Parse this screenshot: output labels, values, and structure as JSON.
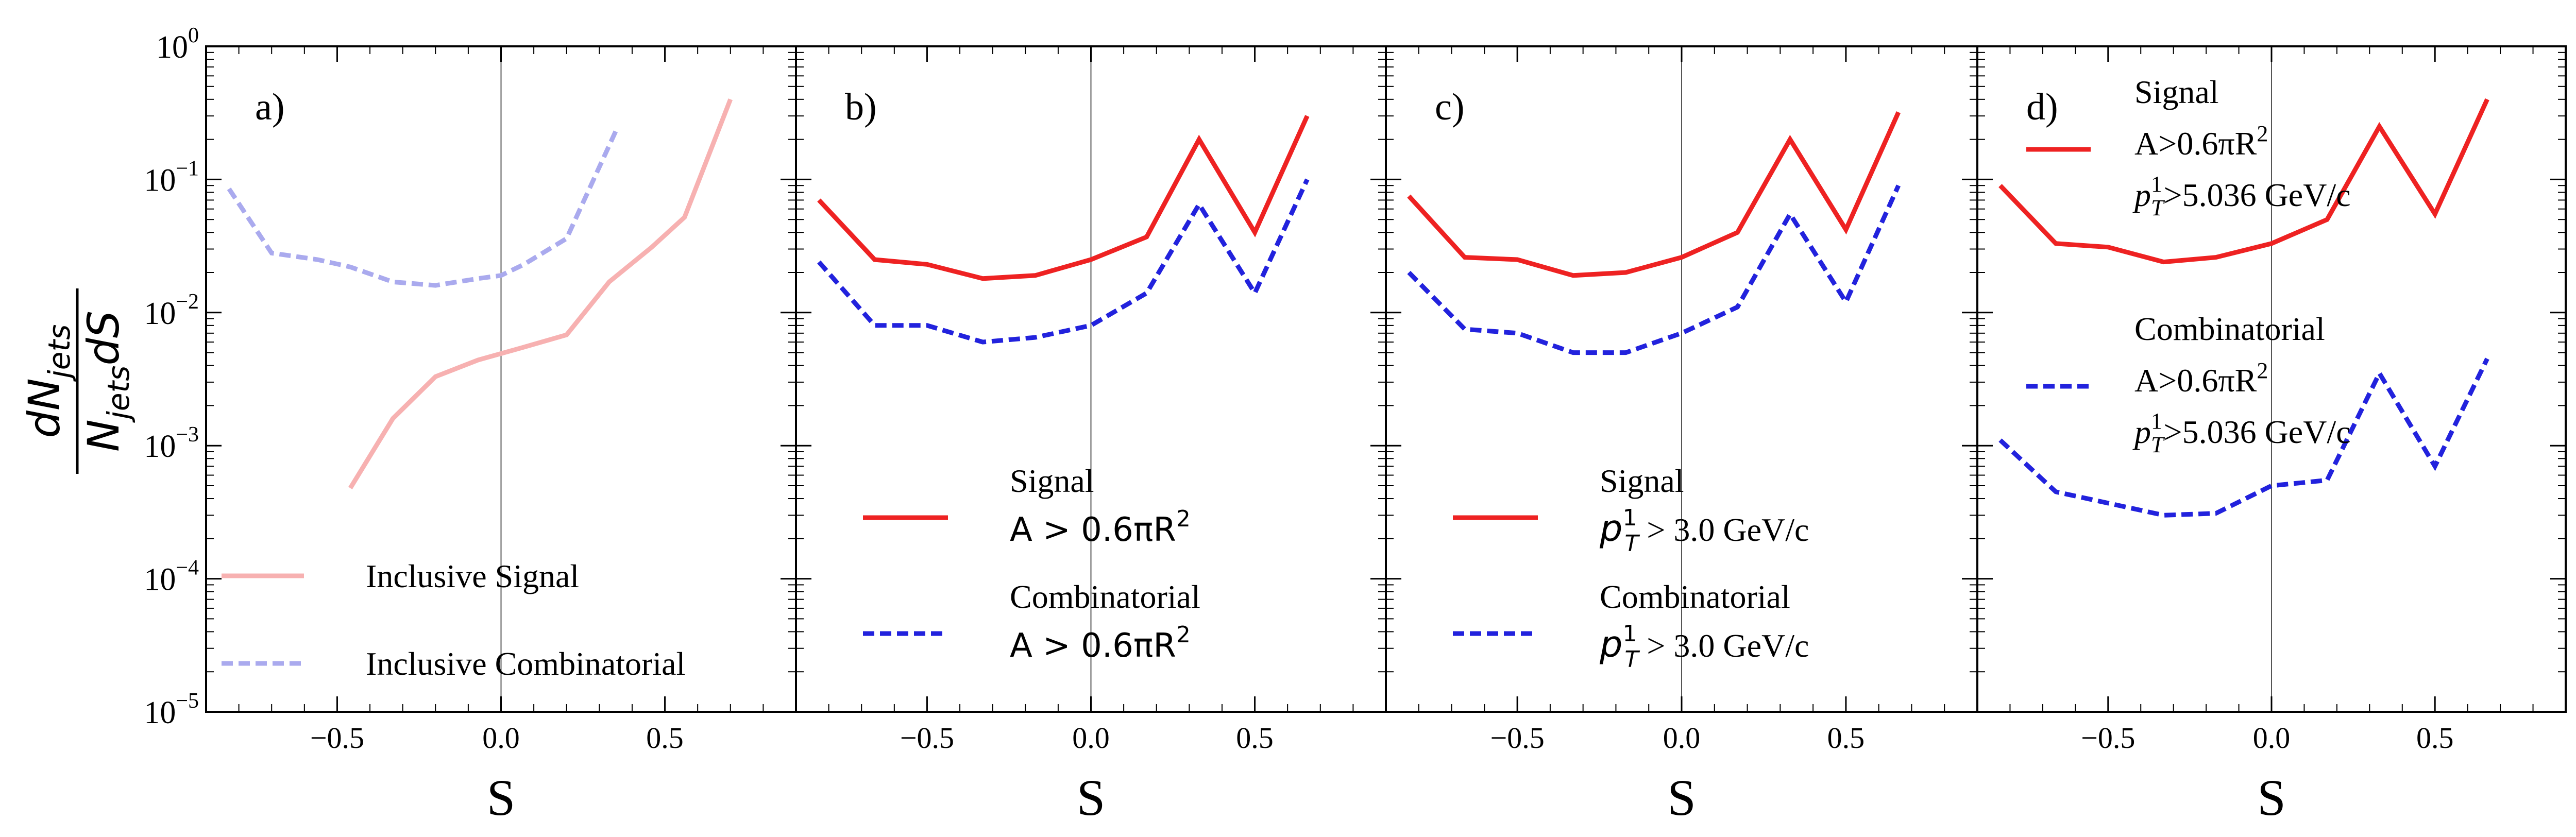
{
  "chart_data": [
    {
      "panel": "a)",
      "type": "line",
      "xlabel": "S",
      "ylabel": "dN_jets / (N_jets dS)",
      "xlim": [
        -0.9,
        0.9
      ],
      "ylim": [
        1e-05,
        1
      ],
      "yscale": "log",
      "xticks": [
        "−0.5",
        "0.0",
        "0.5"
      ],
      "yticks": [
        "10",
        "10",
        "10",
        "10",
        "10",
        "10"
      ],
      "ytick_exponents": [
        "0",
        "−1",
        "−2",
        "−3",
        "−4",
        "−5"
      ],
      "vline_x": 0,
      "legend_position": "lower-left",
      "series": [
        {
          "name": "Inclusive Signal",
          "color": "#f7b1b1",
          "style": "solid",
          "x": [
            -0.46,
            -0.33,
            -0.2,
            -0.07,
            0.07,
            0.2,
            0.33,
            0.46,
            0.56,
            0.7
          ],
          "y": [
            0.00048,
            0.0016,
            0.0033,
            0.0044,
            0.0055,
            0.0068,
            0.017,
            0.031,
            0.052,
            0.4
          ]
        },
        {
          "name": "Inclusive Combinatorial",
          "color": "#aaaaee",
          "style": "dashed",
          "x": [
            -0.83,
            -0.7,
            -0.56,
            -0.46,
            -0.33,
            -0.2,
            -0.07,
            0.0,
            0.07,
            0.2,
            0.35
          ],
          "y": [
            0.085,
            0.028,
            0.025,
            0.022,
            0.017,
            0.016,
            0.018,
            0.019,
            0.023,
            0.036,
            0.23
          ]
        }
      ]
    },
    {
      "panel": "b)",
      "type": "line",
      "xlabel": "S",
      "xlim": [
        -0.9,
        0.9
      ],
      "ylim": [
        1e-05,
        1
      ],
      "yscale": "log",
      "xticks": [
        "−0.5",
        "0.0",
        "0.5"
      ],
      "vline_x": 0,
      "legend_position": "lower-center",
      "series": [
        {
          "name": "Signal",
          "subtitle": "A > 0.6πR",
          "subtitle_sup": "2",
          "color": "#ee2222",
          "style": "solid",
          "x": [
            -0.83,
            -0.66,
            -0.5,
            -0.33,
            -0.17,
            0.0,
            0.17,
            0.33,
            0.5,
            0.66
          ],
          "y": [
            0.07,
            0.025,
            0.023,
            0.018,
            0.019,
            0.025,
            0.037,
            0.2,
            0.04,
            0.3
          ]
        },
        {
          "name": "Combinatorial",
          "subtitle": "A > 0.6πR",
          "subtitle_sup": "2",
          "color": "#2222dd",
          "style": "dashed",
          "x": [
            -0.83,
            -0.66,
            -0.5,
            -0.33,
            -0.17,
            0.0,
            0.17,
            0.33,
            0.5,
            0.66
          ],
          "y": [
            0.024,
            0.008,
            0.008,
            0.006,
            0.0065,
            0.008,
            0.014,
            0.065,
            0.014,
            0.1
          ]
        }
      ]
    },
    {
      "panel": "c)",
      "type": "line",
      "xlabel": "S",
      "xlim": [
        -0.9,
        0.9
      ],
      "ylim": [
        1e-05,
        1
      ],
      "yscale": "log",
      "xticks": [
        "−0.5",
        "0.0",
        "0.5"
      ],
      "vline_x": 0,
      "legend_position": "lower-center",
      "series": [
        {
          "name": "Signal",
          "subtitle": "p",
          "subtitle_sub": "T",
          "subtitle_sup": "1",
          "subtitle_tail": " > 3.0 GeV/c",
          "color": "#ee2222",
          "style": "solid",
          "x": [
            -0.83,
            -0.66,
            -0.5,
            -0.33,
            -0.17,
            0.0,
            0.17,
            0.33,
            0.5,
            0.66
          ],
          "y": [
            0.075,
            0.026,
            0.025,
            0.019,
            0.02,
            0.026,
            0.04,
            0.2,
            0.042,
            0.32
          ]
        },
        {
          "name": "Combinatorial",
          "subtitle": "p",
          "subtitle_sub": "T",
          "subtitle_sup": "1",
          "subtitle_tail": " > 3.0 GeV/c",
          "color": "#2222dd",
          "style": "dashed",
          "x": [
            -0.83,
            -0.66,
            -0.5,
            -0.33,
            -0.17,
            0.0,
            0.17,
            0.33,
            0.5,
            0.66
          ],
          "y": [
            0.02,
            0.0075,
            0.007,
            0.005,
            0.005,
            0.007,
            0.011,
            0.055,
            0.012,
            0.09
          ]
        }
      ]
    },
    {
      "panel": "d)",
      "type": "line",
      "xlabel": "S",
      "xlim": [
        -0.9,
        0.9
      ],
      "ylim": [
        1e-05,
        1
      ],
      "yscale": "log",
      "xticks": [
        "−0.5",
        "0.0",
        "0.5"
      ],
      "vline_x": 0,
      "legend_position": "upper-left",
      "series": [
        {
          "name": "Signal",
          "line2": "A>0.6πR",
          "line2_sup": "2",
          "line3": "p",
          "line3_sub": "T",
          "line3_sup": "1",
          "line3_tail": ">5.036 GeV/c",
          "color": "#ee2222",
          "style": "solid",
          "x": [
            -0.83,
            -0.66,
            -0.5,
            -0.33,
            -0.17,
            0.0,
            0.17,
            0.33,
            0.5,
            0.66
          ],
          "y": [
            0.09,
            0.033,
            0.031,
            0.024,
            0.026,
            0.033,
            0.05,
            0.25,
            0.055,
            0.4
          ]
        },
        {
          "name": "Combinatorial",
          "line2": "A>0.6πR",
          "line2_sup": "2",
          "line3": "p",
          "line3_sub": "T",
          "line3_sup": "1",
          "line3_tail": ">5.036 GeV/c",
          "color": "#2222dd",
          "style": "dashed",
          "x": [
            -0.83,
            -0.66,
            -0.5,
            -0.33,
            -0.17,
            0.0,
            0.17,
            0.33,
            0.5,
            0.66
          ],
          "y": [
            0.0011,
            0.00045,
            0.00037,
            0.0003,
            0.00031,
            0.0005,
            0.00055,
            0.0035,
            0.0007,
            0.0045
          ]
        }
      ]
    }
  ]
}
